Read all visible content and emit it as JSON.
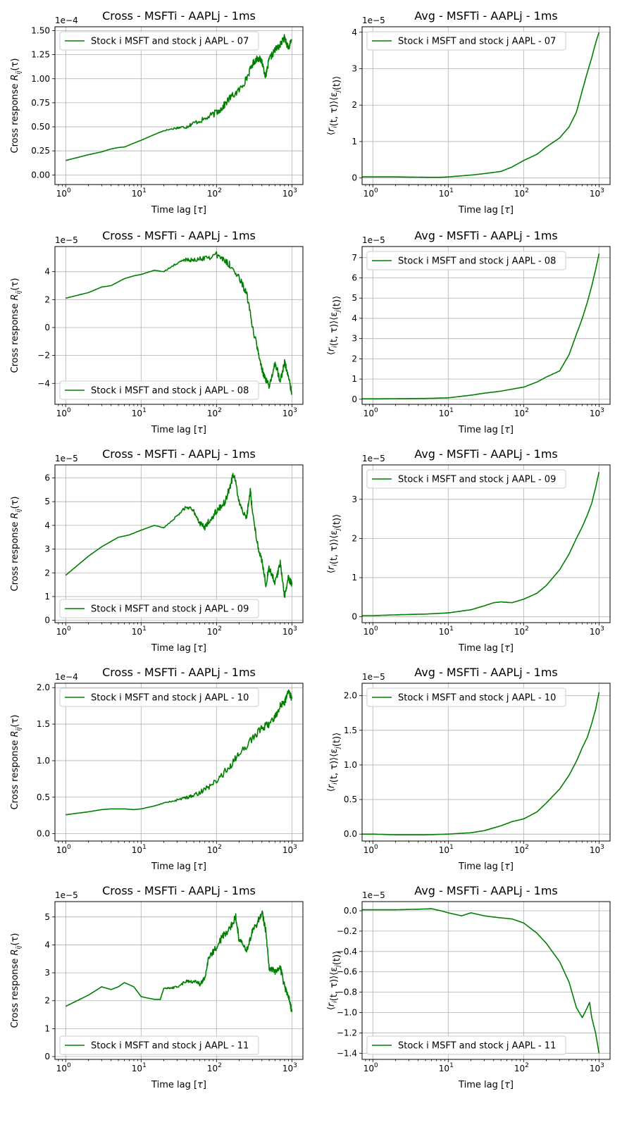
{
  "figure": {
    "background": "#ffffff",
    "line_color": "#008000",
    "grid_color": "#b0b0b0"
  },
  "chart_data": [
    {
      "type": "line",
      "panel": "cross-07",
      "title": "Cross - MSFTi - AAPLj - 1ms",
      "xlabel": "Time lag [τ]",
      "ylabel": "Cross response R_ij(τ)",
      "xscale": "log",
      "xlim": [
        0.72,
        1400
      ],
      "xticks": [
        1,
        10,
        100,
        1000
      ],
      "ylim": [
        -0.1,
        1.54
      ],
      "yticks": [
        0.0,
        0.25,
        0.5,
        0.75,
        1.0,
        1.25,
        1.5
      ],
      "ytick_labels": [
        "0.00",
        "0.25",
        "0.50",
        "0.75",
        "1.00",
        "1.25",
        "1.50"
      ],
      "offset_text": "1e−4",
      "grid": true,
      "legend_position": "upper left",
      "series": [
        {
          "name": "Stock i MSFT and stock j AAPL - 07",
          "shape": "noisy",
          "x": [
            1,
            2,
            3,
            4,
            5,
            6,
            8,
            10,
            15,
            20,
            30,
            40,
            50,
            70,
            100,
            120,
            150,
            200,
            250,
            300,
            350,
            400,
            450,
            500,
            600,
            700,
            800,
            900,
            1000
          ],
          "y": [
            0.15,
            0.21,
            0.24,
            0.27,
            0.285,
            0.29,
            0.33,
            0.36,
            0.42,
            0.46,
            0.49,
            0.5,
            0.54,
            0.58,
            0.65,
            0.7,
            0.8,
            0.88,
            1.0,
            1.15,
            1.22,
            1.18,
            1.02,
            1.2,
            1.3,
            1.35,
            1.43,
            1.32,
            1.4
          ]
        }
      ]
    },
    {
      "type": "line",
      "panel": "avg-07",
      "title": "Avg - MSFTi - AAPLj - 1ms",
      "xlabel": "Time lag [τ]",
      "ylabel": "⟨r_i(t,τ)⟩⟨ε_j(t)⟩",
      "xscale": "log",
      "xlim": [
        0.72,
        1400
      ],
      "xticks": [
        1,
        10,
        100,
        1000
      ],
      "ylim": [
        -0.18,
        4.15
      ],
      "yticks": [
        0,
        1,
        2,
        3,
        4
      ],
      "ytick_labels": [
        "0",
        "1",
        "2",
        "3",
        "4"
      ],
      "offset_text": "1e−5",
      "grid": true,
      "legend_position": "upper left",
      "series": [
        {
          "name": "Stock i MSFT and stock j AAPL - 07",
          "shape": "smooth",
          "x": [
            0.72,
            1,
            2,
            5,
            8,
            10,
            20,
            30,
            50,
            70,
            100,
            150,
            200,
            300,
            400,
            500,
            600,
            700,
            800,
            900,
            1000
          ],
          "y": [
            0.03,
            0.03,
            0.03,
            0.02,
            0.02,
            0.03,
            0.08,
            0.12,
            0.18,
            0.3,
            0.48,
            0.65,
            0.85,
            1.1,
            1.4,
            1.8,
            2.4,
            2.9,
            3.3,
            3.7,
            4.0
          ]
        }
      ]
    },
    {
      "type": "line",
      "panel": "cross-08",
      "title": "Cross - MSFTi - AAPLj - 1ms",
      "xlabel": "Time lag [τ]",
      "ylabel": "Cross response R_ij(τ)",
      "xscale": "log",
      "xlim": [
        0.72,
        1400
      ],
      "xticks": [
        1,
        10,
        100,
        1000
      ],
      "ylim": [
        -5.5,
        5.8
      ],
      "yticks": [
        -4,
        -2,
        0,
        2,
        4
      ],
      "ytick_labels": [
        "−4",
        "−2",
        "0",
        "2",
        "4"
      ],
      "offset_text": "1e−5",
      "grid": true,
      "legend_position": "lower left",
      "series": [
        {
          "name": "Stock i MSFT and stock j AAPL - 08",
          "shape": "noisy",
          "x": [
            1,
            2,
            3,
            4,
            6,
            8,
            10,
            15,
            20,
            30,
            40,
            50,
            70,
            100,
            130,
            150,
            200,
            250,
            300,
            350,
            400,
            450,
            500,
            600,
            700,
            800,
            900,
            1000
          ],
          "y": [
            2.1,
            2.5,
            2.9,
            3.0,
            3.5,
            3.7,
            3.8,
            4.1,
            4.0,
            4.6,
            4.9,
            4.8,
            5.0,
            5.2,
            4.8,
            4.5,
            3.5,
            2.5,
            0.0,
            -1.5,
            -3.0,
            -3.8,
            -4.2,
            -2.5,
            -3.8,
            -2.5,
            -3.5,
            -4.8
          ]
        }
      ]
    },
    {
      "type": "line",
      "panel": "avg-08",
      "title": "Avg - MSFTi - AAPLj - 1ms",
      "xlabel": "Time lag [τ]",
      "ylabel": "⟨r_i(t,τ)⟩⟨ε_j(t)⟩",
      "xscale": "log",
      "xlim": [
        0.72,
        1400
      ],
      "xticks": [
        1,
        10,
        100,
        1000
      ],
      "ylim": [
        -0.25,
        7.55
      ],
      "yticks": [
        0,
        1,
        2,
        3,
        4,
        5,
        6,
        7
      ],
      "ytick_labels": [
        "0",
        "1",
        "2",
        "3",
        "4",
        "5",
        "6",
        "7"
      ],
      "offset_text": "1e−5",
      "grid": true,
      "legend_position": "upper left",
      "series": [
        {
          "name": "Stock i MSFT and stock j AAPL - 08",
          "shape": "smooth",
          "x": [
            0.72,
            1,
            2,
            5,
            10,
            20,
            30,
            50,
            70,
            100,
            150,
            200,
            300,
            400,
            500,
            600,
            700,
            800,
            900,
            1000
          ],
          "y": [
            0.02,
            0.02,
            0.03,
            0.04,
            0.07,
            0.2,
            0.3,
            0.4,
            0.5,
            0.6,
            0.85,
            1.1,
            1.4,
            2.2,
            3.2,
            4.0,
            4.8,
            5.6,
            6.4,
            7.2
          ]
        }
      ]
    },
    {
      "type": "line",
      "panel": "cross-09",
      "title": "Cross - MSFTi - AAPLj - 1ms",
      "xlabel": "Time lag [τ]",
      "ylabel": "Cross response R_ij(τ)",
      "xscale": "log",
      "xlim": [
        0.72,
        1400
      ],
      "xticks": [
        1,
        10,
        100,
        1000
      ],
      "ylim": [
        -0.1,
        6.55
      ],
      "yticks": [
        0,
        1,
        2,
        3,
        4,
        5,
        6
      ],
      "ytick_labels": [
        "0",
        "1",
        "2",
        "3",
        "4",
        "5",
        "6"
      ],
      "offset_text": "1e−5",
      "grid": true,
      "legend_position": "lower left",
      "series": [
        {
          "name": "Stock i MSFT and stock j AAPL - 09",
          "shape": "noisy",
          "x": [
            1,
            2,
            3,
            5,
            7,
            10,
            15,
            20,
            30,
            40,
            50,
            60,
            70,
            80,
            100,
            130,
            150,
            170,
            200,
            250,
            280,
            300,
            350,
            400,
            450,
            500,
            600,
            700,
            800,
            900,
            1000
          ],
          "y": [
            1.9,
            2.7,
            3.1,
            3.5,
            3.6,
            3.8,
            4.0,
            3.9,
            4.4,
            4.8,
            4.6,
            4.1,
            3.9,
            4.2,
            4.6,
            5.0,
            5.6,
            6.2,
            5.0,
            4.3,
            5.5,
            4.6,
            3.2,
            2.5,
            1.5,
            2.2,
            1.6,
            2.4,
            1.0,
            1.8,
            1.5
          ]
        }
      ]
    },
    {
      "type": "line",
      "panel": "avg-09",
      "title": "Avg - MSFTi - AAPLj - 1ms",
      "xlabel": "Time lag [τ]",
      "ylabel": "⟨r_i(t,τ)⟩⟨ε_j(t)⟩",
      "xscale": "log",
      "xlim": [
        0.72,
        1400
      ],
      "xticks": [
        1,
        10,
        100,
        1000
      ],
      "ylim": [
        -0.15,
        3.88
      ],
      "yticks": [
        0,
        1,
        2,
        3
      ],
      "ytick_labels": [
        "0",
        "1",
        "2",
        "3"
      ],
      "offset_text": "1e−5",
      "grid": true,
      "legend_position": "upper left",
      "series": [
        {
          "name": "Stock i MSFT and stock j AAPL - 09",
          "shape": "smooth",
          "x": [
            0.72,
            1,
            2,
            5,
            10,
            20,
            30,
            40,
            50,
            70,
            100,
            150,
            200,
            300,
            400,
            500,
            600,
            700,
            800,
            900,
            1000
          ],
          "y": [
            0.03,
            0.03,
            0.05,
            0.07,
            0.1,
            0.18,
            0.28,
            0.36,
            0.38,
            0.36,
            0.45,
            0.6,
            0.8,
            1.2,
            1.6,
            2.0,
            2.3,
            2.6,
            2.9,
            3.3,
            3.7
          ]
        }
      ]
    },
    {
      "type": "line",
      "panel": "cross-10",
      "title": "Cross - MSFTi - AAPLj - 1ms",
      "xlabel": "Time lag [τ]",
      "ylabel": "Cross response R_ij(τ)",
      "xscale": "log",
      "xlim": [
        0.72,
        1400
      ],
      "xticks": [
        1,
        10,
        100,
        1000
      ],
      "ylim": [
        -0.1,
        2.06
      ],
      "yticks": [
        0.0,
        0.5,
        1.0,
        1.5,
        2.0
      ],
      "ytick_labels": [
        "0.0",
        "0.5",
        "1.0",
        "1.5",
        "2.0"
      ],
      "offset_text": "1e−4",
      "grid": true,
      "legend_position": "upper left",
      "series": [
        {
          "name": "Stock i MSFT and stock j AAPL - 10",
          "shape": "noisy",
          "x": [
            1,
            2,
            3,
            4,
            5,
            6,
            8,
            10,
            15,
            20,
            30,
            40,
            50,
            70,
            100,
            150,
            200,
            300,
            400,
            500,
            600,
            700,
            800,
            900,
            1000
          ],
          "y": [
            0.26,
            0.3,
            0.33,
            0.34,
            0.34,
            0.34,
            0.33,
            0.34,
            0.38,
            0.42,
            0.46,
            0.5,
            0.52,
            0.6,
            0.72,
            0.92,
            1.1,
            1.3,
            1.45,
            1.5,
            1.6,
            1.75,
            1.8,
            1.95,
            1.85
          ]
        }
      ]
    },
    {
      "type": "line",
      "panel": "avg-10",
      "title": "Avg - MSFTi - AAPLj - 1ms",
      "xlabel": "Time lag [τ]",
      "ylabel": "⟨r_i(t,τ)⟩⟨ε_j(t)⟩",
      "xscale": "log",
      "xlim": [
        0.72,
        1400
      ],
      "xticks": [
        1,
        10,
        100,
        1000
      ],
      "ylim": [
        -0.1,
        2.18
      ],
      "yticks": [
        0.0,
        0.5,
        1.0,
        1.5,
        2.0
      ],
      "ytick_labels": [
        "0.0",
        "0.5",
        "1.0",
        "1.5",
        "2.0"
      ],
      "offset_text": "1e−5",
      "grid": true,
      "legend_position": "upper left",
      "series": [
        {
          "name": "Stock i MSFT and stock j AAPL - 10",
          "shape": "smooth",
          "x": [
            0.72,
            1,
            2,
            5,
            10,
            20,
            30,
            50,
            70,
            100,
            150,
            200,
            300,
            400,
            500,
            600,
            700,
            800,
            900,
            1000
          ],
          "y": [
            0.0,
            0.0,
            -0.01,
            -0.01,
            0.0,
            0.02,
            0.05,
            0.12,
            0.18,
            0.22,
            0.32,
            0.45,
            0.65,
            0.85,
            1.05,
            1.25,
            1.4,
            1.6,
            1.8,
            2.05
          ]
        }
      ]
    },
    {
      "type": "line",
      "panel": "cross-11",
      "title": "Cross - MSFTi - AAPLj - 1ms",
      "xlabel": "Time lag [τ]",
      "ylabel": "Cross response R_ij(τ)",
      "xscale": "log",
      "xlim": [
        0.72,
        1400
      ],
      "xticks": [
        1,
        10,
        100,
        1000
      ],
      "ylim": [
        -0.1,
        5.55
      ],
      "yticks": [
        0,
        1,
        2,
        3,
        4,
        5
      ],
      "ytick_labels": [
        "0",
        "1",
        "2",
        "3",
        "4",
        "5"
      ],
      "offset_text": "1e−5",
      "grid": true,
      "legend_position": "lower left",
      "series": [
        {
          "name": "Stock i MSFT and stock j AAPL - 11",
          "shape": "noisy",
          "x": [
            1,
            2,
            3,
            4,
            5,
            6,
            8,
            10,
            12,
            15,
            18,
            20,
            25,
            30,
            40,
            50,
            60,
            70,
            80,
            100,
            120,
            150,
            180,
            200,
            250,
            300,
            350,
            400,
            450,
            500,
            600,
            700,
            800,
            900,
            1000
          ],
          "y": [
            1.8,
            2.2,
            2.5,
            2.4,
            2.5,
            2.65,
            2.5,
            2.15,
            2.1,
            2.05,
            2.05,
            2.45,
            2.45,
            2.5,
            2.7,
            2.7,
            2.6,
            2.8,
            3.6,
            3.9,
            4.3,
            4.6,
            5.0,
            4.2,
            3.8,
            4.5,
            4.8,
            5.2,
            4.5,
            3.2,
            3.0,
            3.2,
            2.5,
            2.2,
            1.6
          ]
        }
      ]
    },
    {
      "type": "line",
      "panel": "avg-11",
      "title": "Avg - MSFTi - AAPLj - 1ms",
      "xlabel": "Time lag [τ]",
      "ylabel": "⟨r_i(t,τ)⟩⟨ε_j(t)⟩",
      "xscale": "log",
      "xlim": [
        0.72,
        1400
      ],
      "xticks": [
        1,
        10,
        100,
        1000
      ],
      "ylim": [
        -1.46,
        0.09
      ],
      "yticks": [
        0.0,
        -0.2,
        -0.4,
        -0.6,
        -0.8,
        -1.0,
        -1.2,
        -1.4
      ],
      "ytick_labels": [
        "0.0",
        "−0.2",
        "−0.4",
        "−0.6",
        "−0.8",
        "−1.0",
        "−1.2",
        "−1.4"
      ],
      "offset_text": "1e−5",
      "grid": true,
      "legend_position": "lower left",
      "series": [
        {
          "name": "Stock i MSFT and stock j AAPL - 11",
          "shape": "smooth",
          "x": [
            0.72,
            1,
            2,
            4,
            6,
            8,
            10,
            15,
            20,
            30,
            50,
            70,
            100,
            150,
            200,
            300,
            400,
            500,
            600,
            700,
            750,
            800,
            900,
            1000
          ],
          "y": [
            0.01,
            0.01,
            0.01,
            0.015,
            0.02,
            0.0,
            -0.02,
            -0.05,
            -0.02,
            -0.05,
            -0.07,
            -0.08,
            -0.12,
            -0.22,
            -0.32,
            -0.5,
            -0.7,
            -0.95,
            -1.05,
            -0.95,
            -0.9,
            -1.05,
            -1.2,
            -1.4
          ]
        }
      ]
    }
  ]
}
